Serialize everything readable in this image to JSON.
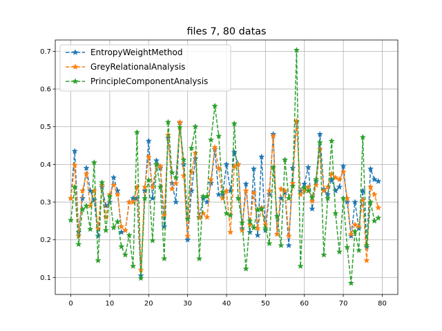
{
  "chart_data": {
    "type": "line",
    "title": "files 7, 80 datas",
    "xlabel": "",
    "ylabel": "",
    "xlim": [
      -4,
      84
    ],
    "ylim": [
      0.055,
      0.73
    ],
    "xticks": [
      0,
      10,
      20,
      30,
      40,
      50,
      60,
      70,
      80
    ],
    "yticks": [
      0.1,
      0.2,
      0.3,
      0.4,
      0.5,
      0.6,
      0.7
    ],
    "grid": true,
    "legend_position": "top-left",
    "x": [
      0,
      1,
      2,
      3,
      4,
      5,
      6,
      7,
      8,
      9,
      10,
      11,
      12,
      13,
      14,
      15,
      16,
      17,
      18,
      19,
      20,
      21,
      22,
      23,
      24,
      25,
      26,
      27,
      28,
      29,
      30,
      31,
      32,
      33,
      34,
      35,
      36,
      37,
      38,
      39,
      40,
      41,
      42,
      43,
      44,
      45,
      46,
      47,
      48,
      49,
      50,
      51,
      52,
      53,
      54,
      55,
      56,
      57,
      58,
      59,
      60,
      61,
      62,
      63,
      64,
      65,
      66,
      67,
      68,
      69,
      70,
      71,
      72,
      73,
      74,
      75,
      76,
      77,
      78,
      79
    ],
    "series": [
      {
        "name": "EntropyWeightMethod",
        "color": "#1f77b4",
        "values": [
          0.31,
          0.435,
          0.22,
          0.31,
          0.39,
          0.33,
          0.305,
          0.21,
          0.34,
          0.29,
          0.3,
          0.365,
          0.33,
          0.22,
          0.225,
          0.3,
          0.31,
          0.31,
          0.105,
          0.33,
          0.462,
          0.31,
          0.41,
          0.39,
          0.235,
          0.47,
          0.35,
          0.3,
          0.51,
          0.4,
          0.2,
          0.33,
          0.415,
          0.26,
          0.31,
          0.3,
          0.35,
          0.44,
          0.32,
          0.32,
          0.4,
          0.33,
          0.432,
          0.4,
          0.23,
          0.348,
          0.22,
          0.388,
          0.212,
          0.42,
          0.225,
          0.32,
          0.48,
          0.215,
          0.31,
          0.325,
          0.185,
          0.39,
          0.512,
          0.33,
          0.348,
          0.392,
          0.282,
          0.355,
          0.48,
          0.334,
          0.32,
          0.36,
          0.33,
          0.34,
          0.395,
          0.3,
          0.21,
          0.3,
          0.23,
          0.33,
          0.18,
          0.388,
          0.36,
          0.355
        ]
      },
      {
        "name": "GreyRelationalAnalysis",
        "color": "#ff7f0e",
        "values": [
          0.31,
          0.398,
          0.21,
          0.33,
          0.375,
          0.29,
          0.33,
          0.23,
          0.345,
          0.26,
          0.32,
          0.345,
          0.32,
          0.235,
          0.225,
          0.3,
          0.3,
          0.34,
          0.12,
          0.34,
          0.42,
          0.34,
          0.4,
          0.395,
          0.265,
          0.478,
          0.335,
          0.35,
          0.512,
          0.37,
          0.21,
          0.38,
          0.43,
          0.258,
          0.27,
          0.26,
          0.36,
          0.445,
          0.39,
          0.31,
          0.33,
          0.22,
          0.395,
          0.4,
          0.225,
          0.33,
          0.24,
          0.325,
          0.23,
          0.285,
          0.24,
          0.33,
          0.475,
          0.215,
          0.335,
          0.33,
          0.21,
          0.35,
          0.515,
          0.32,
          0.33,
          0.34,
          0.302,
          0.345,
          0.44,
          0.33,
          0.34,
          0.375,
          0.365,
          0.36,
          0.38,
          0.31,
          0.215,
          0.24,
          0.235,
          0.305,
          0.145,
          0.34,
          0.32,
          0.285
        ]
      },
      {
        "name": "PrincipleComponentAnalysis",
        "color": "#2ca02c",
        "values": [
          0.252,
          0.34,
          0.188,
          0.28,
          0.29,
          0.228,
          0.405,
          0.145,
          0.352,
          0.225,
          0.315,
          0.232,
          0.248,
          0.182,
          0.16,
          0.212,
          0.13,
          0.485,
          0.098,
          0.31,
          0.358,
          0.198,
          0.4,
          0.34,
          0.15,
          0.512,
          0.378,
          0.365,
          0.498,
          0.412,
          0.255,
          0.443,
          0.5,
          0.15,
          0.315,
          0.315,
          0.465,
          0.555,
          0.475,
          0.326,
          0.27,
          0.265,
          0.508,
          0.31,
          0.245,
          0.123,
          0.25,
          0.232,
          0.28,
          0.282,
          0.23,
          0.19,
          0.392,
          0.262,
          0.185,
          0.412,
          0.31,
          0.342,
          0.703,
          0.13,
          0.338,
          0.33,
          0.312,
          0.36,
          0.458,
          0.16,
          0.31,
          0.462,
          0.27,
          0.168,
          0.31,
          0.18,
          0.085,
          0.222,
          0.172,
          0.472,
          0.185,
          0.3,
          0.25,
          0.258
        ]
      }
    ]
  }
}
